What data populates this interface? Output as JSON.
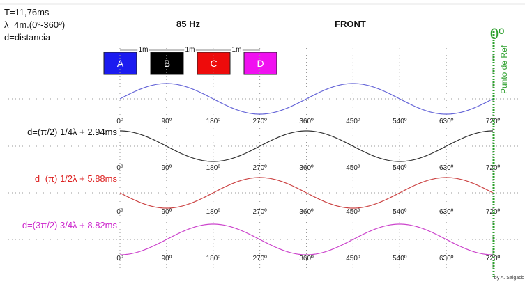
{
  "info": {
    "period": "T=11,76ms",
    "wavelength": "λ=4m.(0º-360º)",
    "distance_def": "d=distancia"
  },
  "frequency": "85 Hz",
  "front_label": "FRONT",
  "reference": {
    "angle": "0º",
    "label": "Punto de Ref",
    "color": "#2ea02e"
  },
  "speakers": [
    {
      "label": "A",
      "color": "#1b1bf0",
      "text_color": "#ffffff"
    },
    {
      "label": "B",
      "color": "#000000",
      "text_color": "#ffffff"
    },
    {
      "label": "C",
      "color": "#ee0b0b",
      "text_color": "#ffffff"
    },
    {
      "label": "D",
      "color": "#f010f0",
      "text_color": "#ffffff"
    }
  ],
  "spacing_label": "1m",
  "spacings": [
    "1m",
    "1m",
    "1m"
  ],
  "phase_ticks": [
    "0º",
    "90º",
    "180º",
    "270º",
    "360º",
    "450º",
    "540º",
    "630º",
    "720º"
  ],
  "waves": [
    {
      "label": "",
      "label_color": "#111111",
      "color": "#6666d8",
      "phase_shift_deg": 0
    },
    {
      "label": "d=(π/2) 1/4λ + 2.94ms",
      "label_color": "#111111",
      "color": "#333333",
      "phase_shift_deg": 90
    },
    {
      "label": "d=(π) 1/2λ + 5.88ms",
      "label_color": "#dd2222",
      "color": "#cc4444",
      "phase_shift_deg": 180
    },
    {
      "label": "d=(3π/2) 3/4λ + 8.82ms",
      "label_color": "#cc22cc",
      "color": "#cc44cc",
      "phase_shift_deg": 270
    }
  ],
  "credit": "by A. Salgado"
}
